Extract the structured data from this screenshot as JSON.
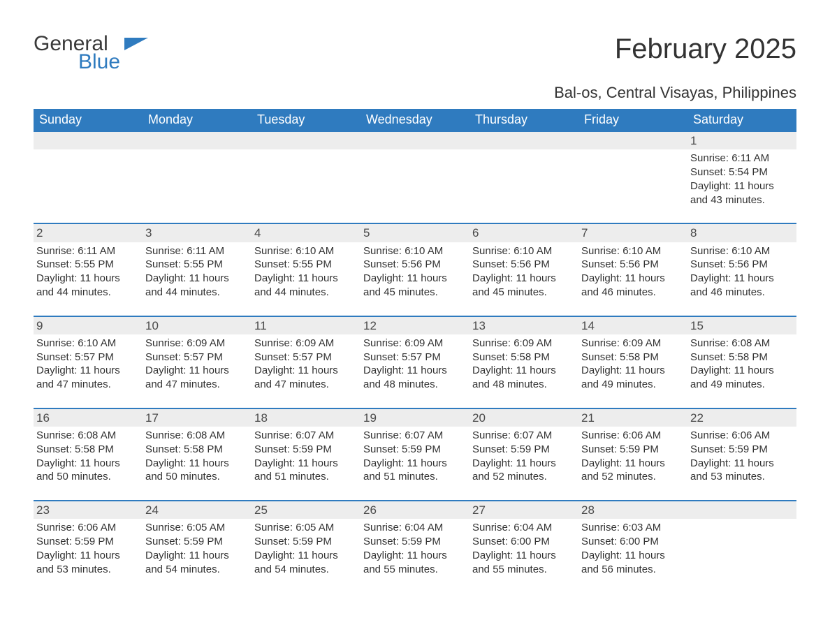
{
  "logo": {
    "general": "General",
    "blue": "Blue",
    "icon_color": "#2f7bbf"
  },
  "title": "February 2025",
  "location": "Bal-os, Central Visayas, Philippines",
  "colors": {
    "header_bg": "#2f7bbf",
    "header_text": "#ffffff",
    "date_bar_bg": "#ededed",
    "date_bar_border": "#2f7bbf",
    "body_text": "#333333",
    "background": "#ffffff"
  },
  "day_names": [
    "Sunday",
    "Monday",
    "Tuesday",
    "Wednesday",
    "Thursday",
    "Friday",
    "Saturday"
  ],
  "weeks": [
    [
      null,
      null,
      null,
      null,
      null,
      null,
      {
        "d": "1",
        "sr": "Sunrise: 6:11 AM",
        "ss": "Sunset: 5:54 PM",
        "dl1": "Daylight: 11 hours",
        "dl2": "and 43 minutes."
      }
    ],
    [
      {
        "d": "2",
        "sr": "Sunrise: 6:11 AM",
        "ss": "Sunset: 5:55 PM",
        "dl1": "Daylight: 11 hours",
        "dl2": "and 44 minutes."
      },
      {
        "d": "3",
        "sr": "Sunrise: 6:11 AM",
        "ss": "Sunset: 5:55 PM",
        "dl1": "Daylight: 11 hours",
        "dl2": "and 44 minutes."
      },
      {
        "d": "4",
        "sr": "Sunrise: 6:10 AM",
        "ss": "Sunset: 5:55 PM",
        "dl1": "Daylight: 11 hours",
        "dl2": "and 44 minutes."
      },
      {
        "d": "5",
        "sr": "Sunrise: 6:10 AM",
        "ss": "Sunset: 5:56 PM",
        "dl1": "Daylight: 11 hours",
        "dl2": "and 45 minutes."
      },
      {
        "d": "6",
        "sr": "Sunrise: 6:10 AM",
        "ss": "Sunset: 5:56 PM",
        "dl1": "Daylight: 11 hours",
        "dl2": "and 45 minutes."
      },
      {
        "d": "7",
        "sr": "Sunrise: 6:10 AM",
        "ss": "Sunset: 5:56 PM",
        "dl1": "Daylight: 11 hours",
        "dl2": "and 46 minutes."
      },
      {
        "d": "8",
        "sr": "Sunrise: 6:10 AM",
        "ss": "Sunset: 5:56 PM",
        "dl1": "Daylight: 11 hours",
        "dl2": "and 46 minutes."
      }
    ],
    [
      {
        "d": "9",
        "sr": "Sunrise: 6:10 AM",
        "ss": "Sunset: 5:57 PM",
        "dl1": "Daylight: 11 hours",
        "dl2": "and 47 minutes."
      },
      {
        "d": "10",
        "sr": "Sunrise: 6:09 AM",
        "ss": "Sunset: 5:57 PM",
        "dl1": "Daylight: 11 hours",
        "dl2": "and 47 minutes."
      },
      {
        "d": "11",
        "sr": "Sunrise: 6:09 AM",
        "ss": "Sunset: 5:57 PM",
        "dl1": "Daylight: 11 hours",
        "dl2": "and 47 minutes."
      },
      {
        "d": "12",
        "sr": "Sunrise: 6:09 AM",
        "ss": "Sunset: 5:57 PM",
        "dl1": "Daylight: 11 hours",
        "dl2": "and 48 minutes."
      },
      {
        "d": "13",
        "sr": "Sunrise: 6:09 AM",
        "ss": "Sunset: 5:58 PM",
        "dl1": "Daylight: 11 hours",
        "dl2": "and 48 minutes."
      },
      {
        "d": "14",
        "sr": "Sunrise: 6:09 AM",
        "ss": "Sunset: 5:58 PM",
        "dl1": "Daylight: 11 hours",
        "dl2": "and 49 minutes."
      },
      {
        "d": "15",
        "sr": "Sunrise: 6:08 AM",
        "ss": "Sunset: 5:58 PM",
        "dl1": "Daylight: 11 hours",
        "dl2": "and 49 minutes."
      }
    ],
    [
      {
        "d": "16",
        "sr": "Sunrise: 6:08 AM",
        "ss": "Sunset: 5:58 PM",
        "dl1": "Daylight: 11 hours",
        "dl2": "and 50 minutes."
      },
      {
        "d": "17",
        "sr": "Sunrise: 6:08 AM",
        "ss": "Sunset: 5:58 PM",
        "dl1": "Daylight: 11 hours",
        "dl2": "and 50 minutes."
      },
      {
        "d": "18",
        "sr": "Sunrise: 6:07 AM",
        "ss": "Sunset: 5:59 PM",
        "dl1": "Daylight: 11 hours",
        "dl2": "and 51 minutes."
      },
      {
        "d": "19",
        "sr": "Sunrise: 6:07 AM",
        "ss": "Sunset: 5:59 PM",
        "dl1": "Daylight: 11 hours",
        "dl2": "and 51 minutes."
      },
      {
        "d": "20",
        "sr": "Sunrise: 6:07 AM",
        "ss": "Sunset: 5:59 PM",
        "dl1": "Daylight: 11 hours",
        "dl2": "and 52 minutes."
      },
      {
        "d": "21",
        "sr": "Sunrise: 6:06 AM",
        "ss": "Sunset: 5:59 PM",
        "dl1": "Daylight: 11 hours",
        "dl2": "and 52 minutes."
      },
      {
        "d": "22",
        "sr": "Sunrise: 6:06 AM",
        "ss": "Sunset: 5:59 PM",
        "dl1": "Daylight: 11 hours",
        "dl2": "and 53 minutes."
      }
    ],
    [
      {
        "d": "23",
        "sr": "Sunrise: 6:06 AM",
        "ss": "Sunset: 5:59 PM",
        "dl1": "Daylight: 11 hours",
        "dl2": "and 53 minutes."
      },
      {
        "d": "24",
        "sr": "Sunrise: 6:05 AM",
        "ss": "Sunset: 5:59 PM",
        "dl1": "Daylight: 11 hours",
        "dl2": "and 54 minutes."
      },
      {
        "d": "25",
        "sr": "Sunrise: 6:05 AM",
        "ss": "Sunset: 5:59 PM",
        "dl1": "Daylight: 11 hours",
        "dl2": "and 54 minutes."
      },
      {
        "d": "26",
        "sr": "Sunrise: 6:04 AM",
        "ss": "Sunset: 5:59 PM",
        "dl1": "Daylight: 11 hours",
        "dl2": "and 55 minutes."
      },
      {
        "d": "27",
        "sr": "Sunrise: 6:04 AM",
        "ss": "Sunset: 6:00 PM",
        "dl1": "Daylight: 11 hours",
        "dl2": "and 55 minutes."
      },
      {
        "d": "28",
        "sr": "Sunrise: 6:03 AM",
        "ss": "Sunset: 6:00 PM",
        "dl1": "Daylight: 11 hours",
        "dl2": "and 56 minutes."
      },
      null
    ]
  ]
}
